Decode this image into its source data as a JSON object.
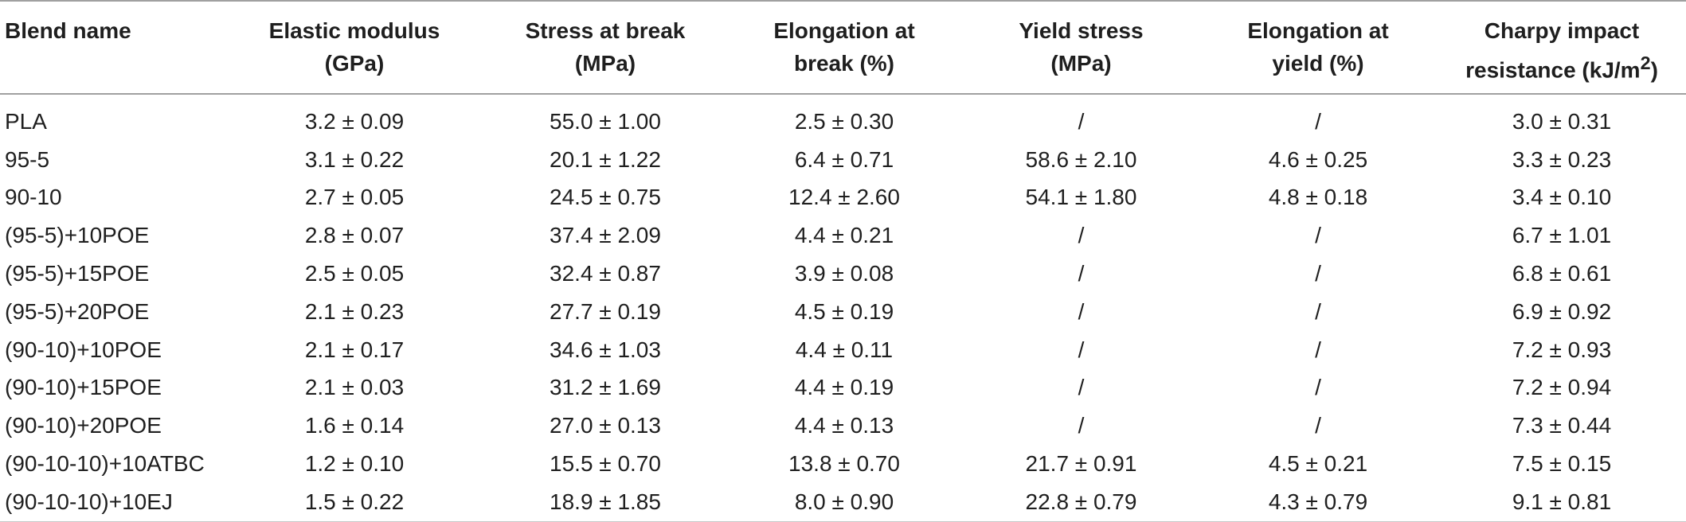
{
  "table": {
    "headers": [
      {
        "line1": "Blend name",
        "line2": ""
      },
      {
        "line1": "Elastic modulus",
        "line2": "(GPa)"
      },
      {
        "line1": "Stress at break",
        "line2": "(MPa)"
      },
      {
        "line1": "Elongation at",
        "line2": "break (%)"
      },
      {
        "line1": "Yield stress",
        "line2": "(MPa)"
      },
      {
        "line1": "Elongation at",
        "line2": "yield (%)"
      },
      {
        "line1": "Charpy impact",
        "line2": "resistance (kJ/m",
        "superscript": "2",
        "line2_end": ")"
      }
    ],
    "rows": [
      [
        "PLA",
        "3.2 ± 0.09",
        "55.0 ± 1.00",
        "2.5 ± 0.30",
        "/",
        "/",
        "3.0 ± 0.31"
      ],
      [
        "95-5",
        "3.1 ± 0.22",
        "20.1 ± 1.22",
        "6.4 ± 0.71",
        "58.6 ± 2.10",
        "4.6 ± 0.25",
        "3.3 ± 0.23"
      ],
      [
        "90-10",
        "2.7 ± 0.05",
        "24.5 ± 0.75",
        "12.4 ± 2.60",
        "54.1 ± 1.80",
        "4.8 ± 0.18",
        "3.4 ± 0.10"
      ],
      [
        "(95-5)+10POE",
        "2.8 ± 0.07",
        "37.4 ± 2.09",
        "4.4 ± 0.21",
        "/",
        "/",
        "6.7 ± 1.01"
      ],
      [
        "(95-5)+15POE",
        "2.5 ± 0.05",
        "32.4 ± 0.87",
        "3.9 ± 0.08",
        "/",
        "/",
        "6.8 ± 0.61"
      ],
      [
        "(95-5)+20POE",
        "2.1 ± 0.23",
        "27.7 ± 0.19",
        "4.5 ± 0.19",
        "/",
        "/",
        "6.9 ± 0.92"
      ],
      [
        "(90-10)+10POE",
        "2.1 ± 0.17",
        "34.6 ± 1.03",
        "4.4 ± 0.11",
        "/",
        "/",
        "7.2 ± 0.93"
      ],
      [
        "(90-10)+15POE",
        "2.1 ± 0.03",
        "31.2 ± 1.69",
        "4.4 ± 0.19",
        "/",
        "/",
        "7.2 ± 0.94"
      ],
      [
        "(90-10)+20POE",
        "1.6 ± 0.14",
        "27.0 ± 0.13",
        "4.4 ± 0.13",
        "/",
        "/",
        "7.3 ± 0.44"
      ],
      [
        "(90-10-10)+10ATBC",
        "1.2 ± 0.10",
        "15.5 ± 0.70",
        "13.8 ± 0.70",
        "21.7 ± 0.91",
        "4.5 ± 0.21",
        "7.5 ± 0.15"
      ],
      [
        "(90-10-10)+10EJ",
        "1.5 ± 0.22",
        "18.9 ± 1.85",
        "8.0 ± 0.90",
        "22.8 ± 0.79",
        "4.3 ± 0.79",
        "9.1 ± 0.81"
      ]
    ]
  }
}
